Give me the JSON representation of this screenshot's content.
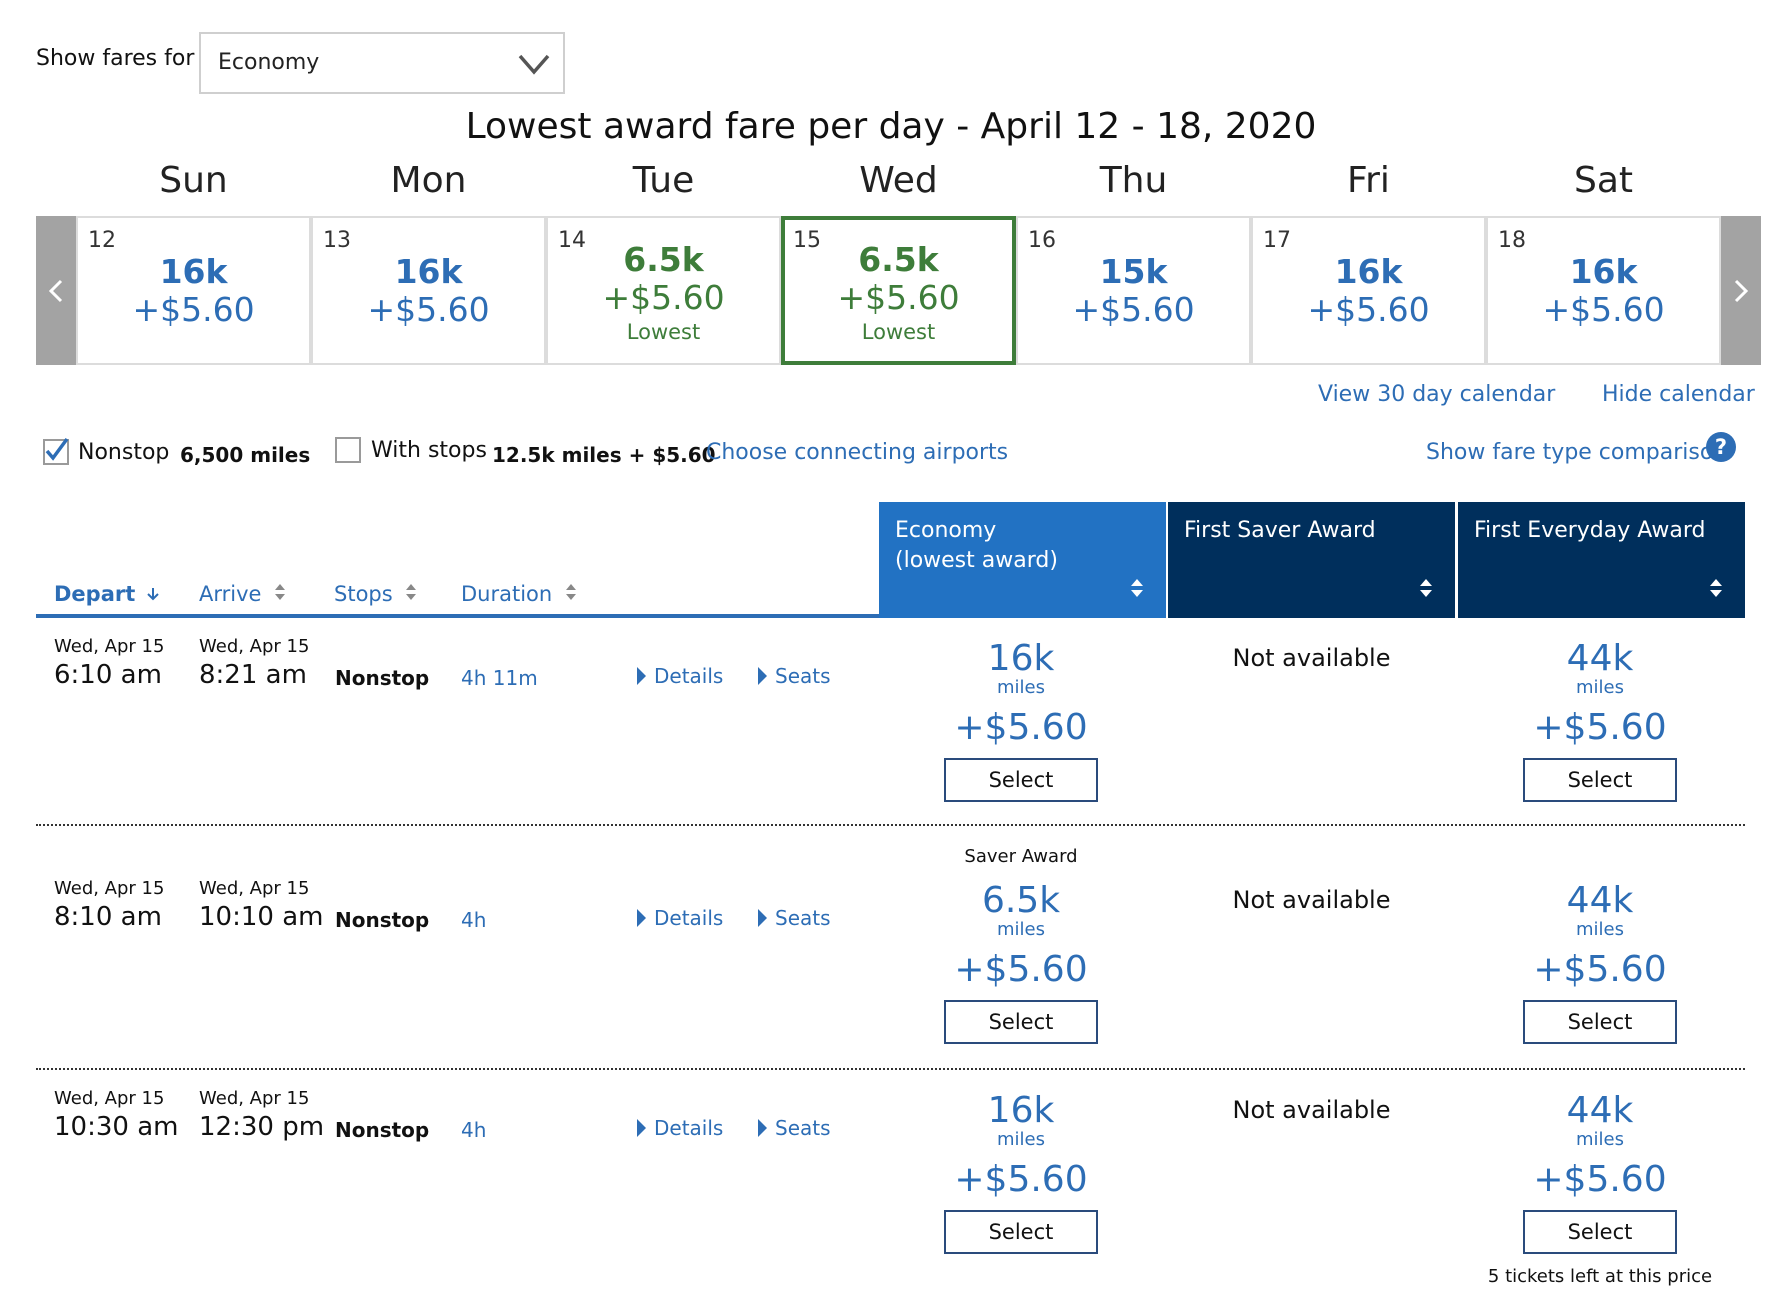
{
  "fare_filter": {
    "label": "Show fares for",
    "selected": "Economy"
  },
  "calendar": {
    "title": "Lowest award fare per day - April 12 - 18, 2020",
    "days": [
      {
        "dow": "Sun",
        "date": "12",
        "miles": "16k",
        "fee": "+$5.60",
        "note": ""
      },
      {
        "dow": "Mon",
        "date": "13",
        "miles": "16k",
        "fee": "+$5.60",
        "note": ""
      },
      {
        "dow": "Tue",
        "date": "14",
        "miles": "6.5k",
        "fee": "+$5.60",
        "note": "Lowest"
      },
      {
        "dow": "Wed",
        "date": "15",
        "miles": "6.5k",
        "fee": "+$5.60",
        "note": "Lowest"
      },
      {
        "dow": "Thu",
        "date": "16",
        "miles": "15k",
        "fee": "+$5.60",
        "note": ""
      },
      {
        "dow": "Fri",
        "date": "17",
        "miles": "16k",
        "fee": "+$5.60",
        "note": ""
      },
      {
        "dow": "Sat",
        "date": "18",
        "miles": "16k",
        "fee": "+$5.60",
        "note": ""
      }
    ],
    "selected_date": "15",
    "view_30": "View 30 day calendar",
    "hide": "Hide calendar"
  },
  "filters": {
    "nonstop_label": "Nonstop",
    "nonstop_value": "6,500 miles",
    "nonstop_checked": true,
    "withstops_label": "With stops",
    "withstops_value": "12.5k miles + $5.60",
    "withstops_checked": false,
    "connecting": "Choose connecting airports",
    "comparison": "Show fare type comparison"
  },
  "columns": {
    "depart": "Depart",
    "arrive": "Arrive",
    "stops": "Stops",
    "duration": "Duration",
    "economy_line1": "Economy",
    "economy_line2": "(lowest award)",
    "first_saver": "First Saver Award",
    "first_everyday": "First Everyday Award"
  },
  "flights": [
    {
      "depart_date": "Wed, Apr 15",
      "depart_time": "6:10 am",
      "arrive_date": "Wed, Apr 15",
      "arrive_time": "8:21 am",
      "stops": "Nonstop",
      "duration": "4h 11m",
      "details": "Details",
      "seats": "Seats",
      "econ_tag": "",
      "econ_miles": "16k",
      "econ_unit": "miles",
      "econ_fee": "+$5.60",
      "econ_select": "Select",
      "saver": "Not available",
      "everyday_miles": "44k",
      "everyday_unit": "miles",
      "everyday_fee": "+$5.60",
      "everyday_select": "Select",
      "note": ""
    },
    {
      "depart_date": "Wed, Apr 15",
      "depart_time": "8:10 am",
      "arrive_date": "Wed, Apr 15",
      "arrive_time": "10:10 am",
      "stops": "Nonstop",
      "duration": "4h",
      "details": "Details",
      "seats": "Seats",
      "econ_tag": "Saver Award",
      "econ_miles": "6.5k",
      "econ_unit": "miles",
      "econ_fee": "+$5.60",
      "econ_select": "Select",
      "saver": "Not available",
      "everyday_miles": "44k",
      "everyday_unit": "miles",
      "everyday_fee": "+$5.60",
      "everyday_select": "Select",
      "note": ""
    },
    {
      "depart_date": "Wed, Apr 15",
      "depart_time": "10:30 am",
      "arrive_date": "Wed, Apr 15",
      "arrive_time": "12:30 pm",
      "stops": "Nonstop",
      "duration": "4h",
      "details": "Details",
      "seats": "Seats",
      "econ_tag": "",
      "econ_miles": "16k",
      "econ_unit": "miles",
      "econ_fee": "+$5.60",
      "econ_select": "Select",
      "saver": "Not available",
      "everyday_miles": "44k",
      "everyday_unit": "miles",
      "everyday_fee": "+$5.60",
      "everyday_select": "Select",
      "note": "5 tickets left at this price"
    }
  ],
  "colors": {
    "link_blue": "#2d6db5",
    "economy_header": "#2272c3",
    "first_header": "#002f5c",
    "lowest_green": "#3e7d3a"
  }
}
